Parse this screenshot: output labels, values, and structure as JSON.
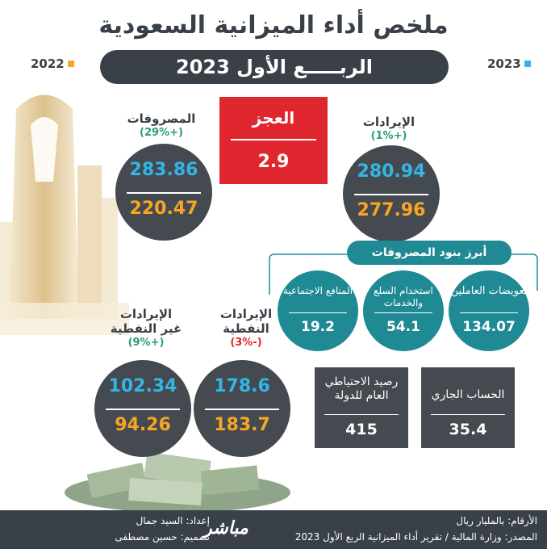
{
  "title": "ملخص أداء الميزانية السعودية",
  "quarter": "الربـــــع الأول 2023",
  "legend": {
    "left_year": "2022",
    "right_year": "2023",
    "left_color": "#f6a623",
    "right_color": "#33b5e5"
  },
  "deficit": {
    "label": "العجز",
    "value": "2.9"
  },
  "expenses": {
    "label": "المصروفات",
    "change": "(+29%)",
    "v2023": "283.86",
    "v2022": "220.47"
  },
  "revenues": {
    "label": "الإيرادات",
    "change": "(+1%)",
    "v2023": "280.94",
    "v2022": "277.96"
  },
  "top_expenses": {
    "title": "أبرز بنود المصروفات",
    "items": [
      {
        "label": "تعويضات العاملين",
        "value": "134.07"
      },
      {
        "label": "استخدام السلع والخدمات",
        "value": "54.1"
      },
      {
        "label": "المنافع الاجتماعية",
        "value": "19.2"
      }
    ]
  },
  "non_oil": {
    "label1": "الإيرادات",
    "label2": "غير النفطية",
    "change": "(+9%)",
    "v2023": "102.34",
    "v2022": "94.26"
  },
  "oil": {
    "label1": "الإيرادات",
    "label2": "النفطية",
    "change": "(-3%)",
    "v2023": "178.6",
    "v2022": "183.7"
  },
  "reserve": {
    "label": "رصيد الاحتياطي العام للدولة",
    "value": "415"
  },
  "current_account": {
    "label": "الحساب الجاري",
    "value": "35.4"
  },
  "footer": {
    "prep": "إعداد: السيد جمال",
    "design": "تصميم: حسين مصطفى",
    "logo": "مباشر",
    "unit": "الأرقام: بالمليار ريال",
    "source": "المصدر: وزارة المالية / تقرير أداء الميزانية الربع الأول 2023"
  }
}
